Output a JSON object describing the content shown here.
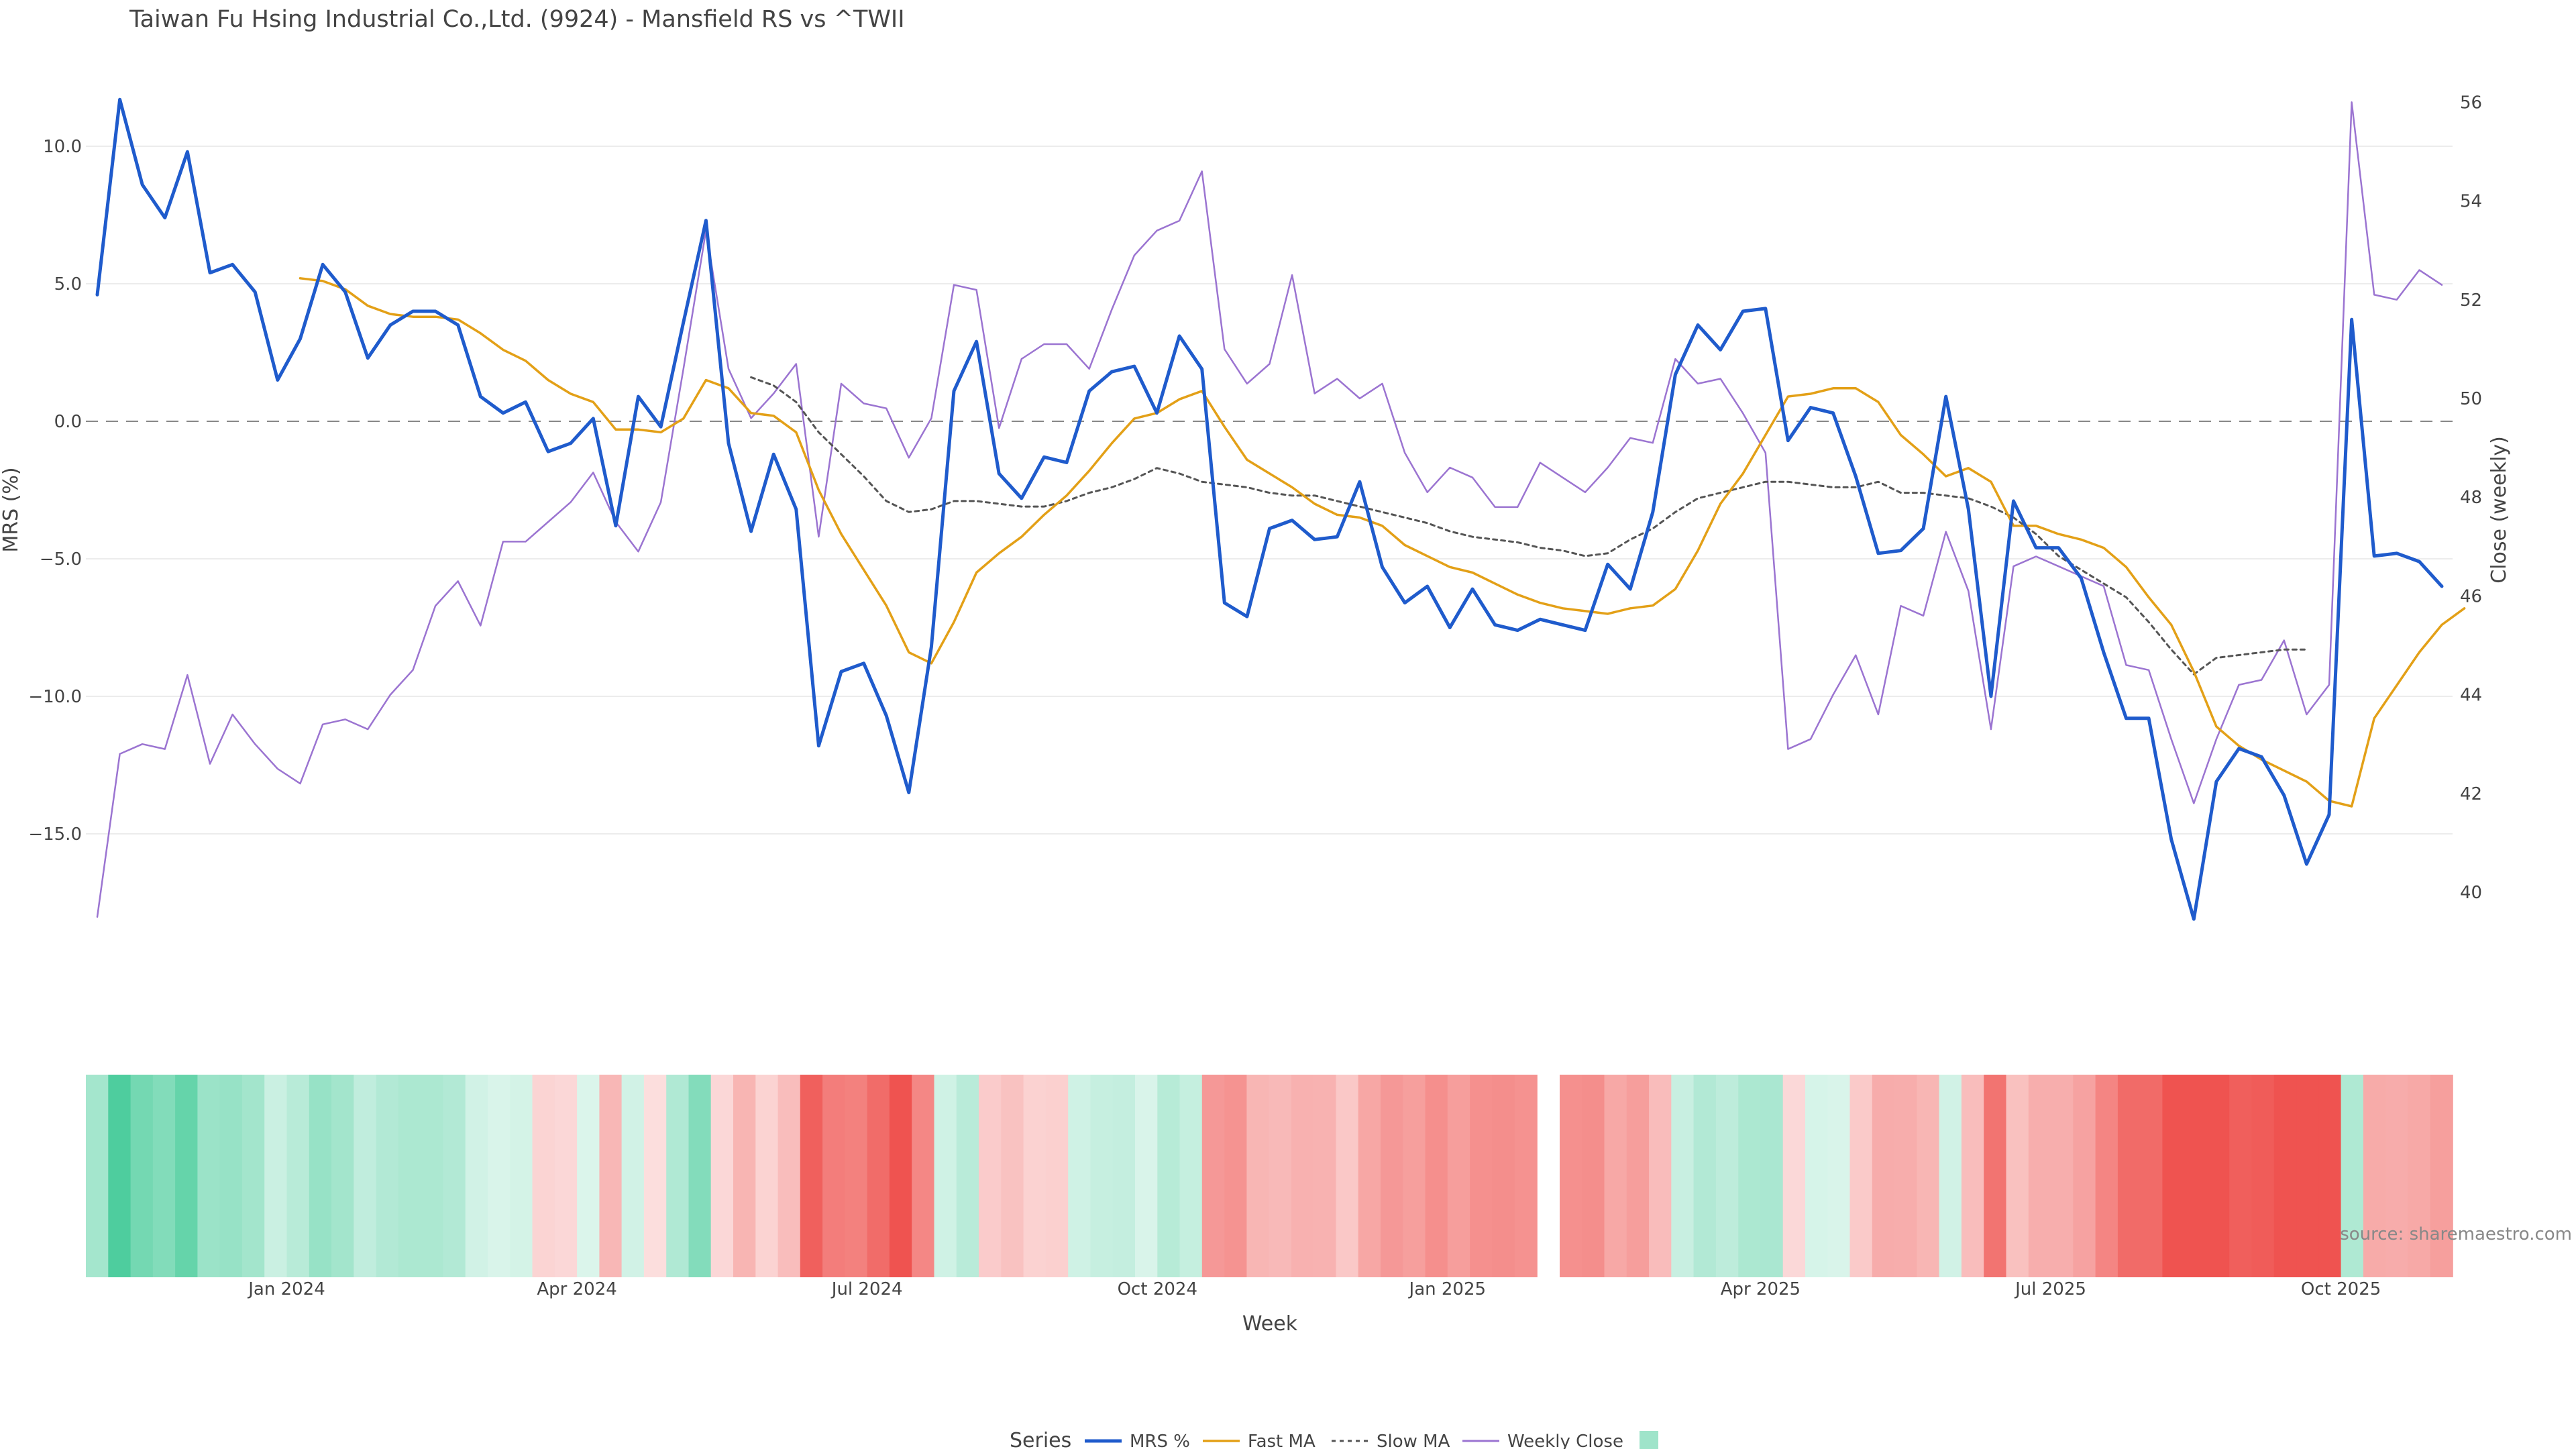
{
  "chart_data": {
    "type": "line",
    "title": "Taiwan Fu Hsing Industrial Co.,Ltd. (9924) - Mansfield RS vs ^TWII",
    "xlabel": "Week",
    "ylabel_left": "MRS (%)",
    "ylabel_right": "Close (weekly)",
    "source": "source: sharemaestro.com",
    "legend_title": "Series",
    "legend_position": "bottom",
    "grid": true,
    "x_start": "2023-11-06",
    "x_step_days": 7,
    "x_ticks": [
      "Jan 2024",
      "Apr 2024",
      "Jul 2024",
      "Oct 2024",
      "Jan 2025",
      "Apr 2025",
      "Jul 2025",
      "Oct 2025"
    ],
    "y_left": {
      "range": [
        -18.5,
        12.5
      ],
      "ticks": [
        10.0,
        5.0,
        0.0,
        -5.0,
        -10.0,
        -15.0
      ],
      "tick_labels": [
        "10.0",
        "5.0",
        "0.0",
        "−5.0",
        "−10.0",
        "−15.0"
      ],
      "zero_line": 0.0
    },
    "y_right": {
      "range": [
        39,
        56.8
      ],
      "ticks": [
        40,
        42,
        44,
        46,
        48,
        50,
        52,
        54,
        56
      ]
    },
    "series": [
      {
        "name": "MRS %",
        "axis": "left",
        "color": "#1f5bcc",
        "style": "solid",
        "width": 5,
        "values": [
          4.6,
          11.7,
          8.6,
          7.4,
          9.8,
          5.4,
          5.7,
          4.7,
          1.5,
          3.0,
          5.7,
          4.7,
          2.3,
          3.5,
          4.0,
          4.0,
          3.5,
          0.9,
          0.3,
          0.7,
          -1.1,
          -0.8,
          0.1,
          -3.8,
          0.9,
          -0.2,
          3.6,
          7.3,
          -0.8,
          -4.0,
          -1.2,
          -3.2,
          -11.8,
          -9.1,
          -8.8,
          -10.7,
          -13.5,
          -8.2,
          1.1,
          2.9,
          -1.9,
          -2.8,
          -1.3,
          -1.5,
          1.1,
          1.8,
          2.0,
          0.3,
          3.1,
          1.9,
          -6.6,
          -7.1,
          -3.9,
          -3.6,
          -4.3,
          -4.2,
          -2.2,
          -5.3,
          -6.6,
          -6.0,
          -7.5,
          -6.1,
          -7.4,
          -7.6,
          -7.2,
          -7.4,
          -7.6,
          -5.2,
          -6.1,
          -3.3,
          1.7,
          3.5,
          2.6,
          4.0,
          4.1,
          -0.7,
          0.5,
          0.3,
          -2.0,
          -4.8,
          -4.7,
          -3.9,
          0.9,
          -3.2,
          -10.0,
          -2.9,
          -4.6,
          -4.6,
          -5.7,
          -8.4,
          -10.8,
          -10.8,
          -15.2,
          -18.1,
          -13.1,
          -11.9,
          -12.2,
          -13.6,
          -16.1,
          -14.3,
          3.7,
          -4.9,
          -4.8,
          -5.1,
          -6.0
        ]
      },
      {
        "name": "Fast MA",
        "axis": "left",
        "color": "#e3a017",
        "style": "solid",
        "width": 3.5,
        "start_index": 9,
        "values": [
          5.2,
          5.1,
          4.8,
          4.2,
          3.9,
          3.8,
          3.8,
          3.7,
          3.2,
          2.6,
          2.2,
          1.5,
          1.0,
          0.7,
          -0.3,
          -0.3,
          -0.4,
          0.1,
          1.5,
          1.2,
          0.3,
          0.2,
          -0.4,
          -2.5,
          -4.1,
          -5.4,
          -6.7,
          -8.4,
          -8.8,
          -7.3,
          -5.5,
          -4.8,
          -4.2,
          -3.4,
          -2.7,
          -1.8,
          -0.8,
          0.1,
          0.3,
          0.8,
          1.1,
          -0.2,
          -1.4,
          -1.9,
          -2.4,
          -3.0,
          -3.4,
          -3.5,
          -3.8,
          -4.5,
          -4.9,
          -5.3,
          -5.5,
          -5.9,
          -6.3,
          -6.6,
          -6.8,
          -6.9,
          -7.0,
          -6.8,
          -6.7,
          -6.1,
          -4.7,
          -3.0,
          -1.9,
          -0.5,
          0.9,
          1.0,
          1.2,
          1.2,
          0.7,
          -0.5,
          -1.2,
          -2.0,
          -1.7,
          -2.2,
          -3.8,
          -3.8,
          -4.1,
          -4.3,
          -4.6,
          -5.3,
          -6.4,
          -7.4,
          -9.1,
          -11.1,
          -11.8,
          -12.3,
          -12.7,
          -13.1,
          -13.8,
          -14.0,
          -10.8,
          -9.6,
          -8.4,
          -7.4,
          -6.8
        ]
      },
      {
        "name": "Slow MA",
        "axis": "left",
        "color": "#555555",
        "style": "dotted",
        "width": 3,
        "start_index": 29,
        "values": [
          1.6,
          1.3,
          0.7,
          -0.4,
          -1.2,
          -2.0,
          -2.9,
          -3.3,
          -3.2,
          -2.9,
          -2.9,
          -3.0,
          -3.1,
          -3.1,
          -2.9,
          -2.6,
          -2.4,
          -2.1,
          -1.7,
          -1.9,
          -2.2,
          -2.3,
          -2.4,
          -2.6,
          -2.7,
          -2.7,
          -2.9,
          -3.1,
          -3.3,
          -3.5,
          -3.7,
          -4.0,
          -4.2,
          -4.3,
          -4.4,
          -4.6,
          -4.7,
          -4.9,
          -4.8,
          -4.3,
          -3.9,
          -3.3,
          -2.8,
          -2.6,
          -2.4,
          -2.2,
          -2.2,
          -2.3,
          -2.4,
          -2.4,
          -2.2,
          -2.6,
          -2.6,
          -2.7,
          -2.8,
          -3.1,
          -3.5,
          -4.1,
          -4.9,
          -5.4,
          -5.9,
          -6.4,
          -7.3,
          -8.3,
          -9.2,
          -8.6,
          -8.5,
          -8.4,
          -8.3,
          -8.3
        ]
      },
      {
        "name": "Weekly Close",
        "axis": "right",
        "color": "#9b74d1",
        "style": "solid",
        "width": 2.5,
        "values": [
          39.5,
          42.8,
          43.0,
          42.9,
          44.4,
          42.6,
          43.6,
          43.0,
          42.5,
          42.2,
          43.4,
          43.5,
          43.3,
          44.0,
          44.5,
          45.8,
          46.3,
          45.4,
          47.1,
          47.1,
          47.5,
          47.9,
          48.5,
          47.5,
          46.9,
          47.9,
          50.6,
          53.4,
          50.6,
          49.6,
          50.1,
          50.7,
          47.2,
          50.3,
          49.9,
          49.8,
          48.8,
          49.6,
          52.3,
          52.2,
          49.4,
          50.8,
          51.1,
          51.1,
          50.6,
          51.8,
          52.9,
          53.4,
          53.6,
          54.6,
          51.0,
          50.3,
          50.7,
          52.5,
          50.1,
          50.4,
          50.0,
          50.3,
          48.9,
          48.1,
          48.6,
          48.4,
          47.8,
          47.8,
          48.7,
          48.4,
          48.1,
          48.6,
          49.2,
          49.1,
          50.8,
          50.3,
          50.4,
          49.7,
          48.9,
          42.9,
          43.1,
          44.0,
          44.8,
          43.6,
          45.8,
          45.6,
          47.3,
          46.1,
          43.3,
          46.6,
          46.8,
          46.6,
          46.4,
          46.2,
          44.6,
          44.5,
          43.1,
          41.8,
          43.1,
          44.2,
          44.3,
          45.1,
          43.6,
          44.2,
          56.0,
          52.1,
          52.0,
          52.6,
          52.3
        ]
      }
    ],
    "rs_bar": {
      "gap_index": 65,
      "values": [
        4.6,
        11.7,
        8.6,
        7.4,
        9.8,
        5.4,
        5.7,
        4.7,
        1.5,
        3.0,
        5.7,
        4.7,
        2.3,
        3.5,
        4.0,
        4.0,
        3.5,
        0.9,
        0.3,
        0.7,
        -1.1,
        -0.8,
        0.1,
        -3.8,
        0.9,
        -0.2,
        3.6,
        7.3,
        -0.8,
        -4.0,
        -1.2,
        -3.2,
        -11.8,
        -9.1,
        -8.8,
        -10.7,
        -13.5,
        -8.2,
        1.1,
        2.9,
        -1.9,
        -2.8,
        -1.3,
        -1.5,
        1.1,
        1.8,
        2.0,
        0.3,
        3.1,
        1.9,
        -6.6,
        -7.1,
        -3.9,
        -3.6,
        -4.3,
        -4.2,
        -2.2,
        -5.3,
        -6.6,
        -6.0,
        -7.5,
        -6.1,
        -7.4,
        -7.6,
        -7.2,
        -7.4,
        -7.6,
        -5.2,
        -6.1,
        -3.3,
        1.7,
        3.5,
        2.6,
        4.0,
        4.1,
        -0.7,
        0.5,
        0.3,
        -2.0,
        -4.8,
        -4.7,
        -3.9,
        0.9,
        -3.2,
        -10.0,
        -2.9,
        -4.6,
        -4.6,
        -5.7,
        -8.4,
        -10.8,
        -10.8,
        -15.2,
        -18.1,
        -13.1,
        -11.9,
        -12.2,
        -13.6,
        -16.1,
        -14.3,
        3.7,
        -4.9,
        -4.8,
        -5.1,
        -6.0
      ],
      "positive_color": "#3ec995",
      "negative_color": "#ef5350"
    }
  }
}
